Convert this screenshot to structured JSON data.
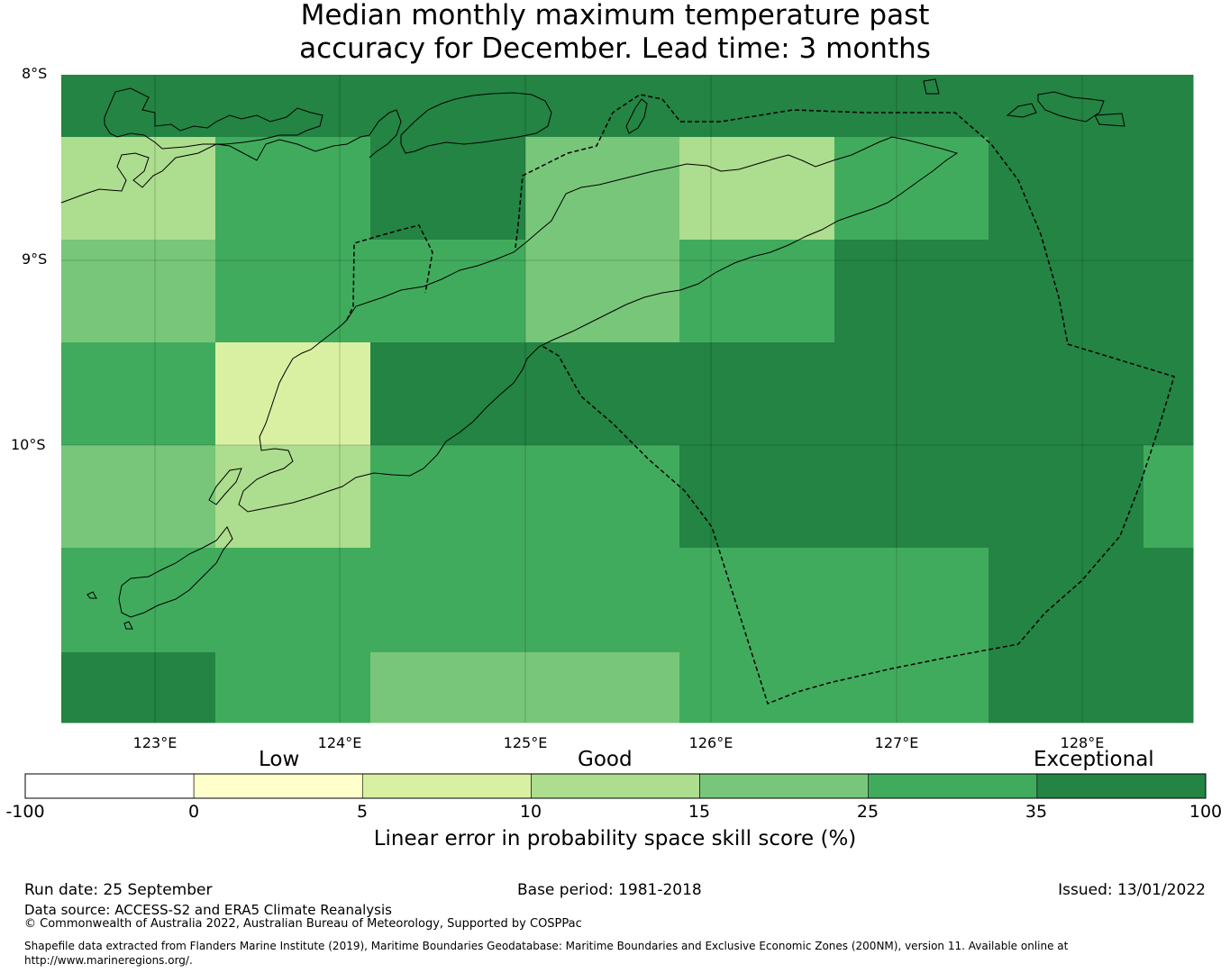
{
  "title": {
    "line1": "Median monthly maximum temperature past",
    "line2": "accuracy for December. Lead time: 3 months"
  },
  "map": {
    "lat_labels": [
      "8°S",
      "9°S",
      "10°S"
    ],
    "lon_labels": [
      "123°E",
      "124°E",
      "125°E",
      "126°E",
      "127°E",
      "128°E"
    ],
    "grid_skill_rows": [
      [
        "exceptional",
        "exceptional",
        "exceptional",
        "exceptional",
        "exceptional",
        "exceptional",
        "exceptional",
        "exceptional"
      ],
      [
        "10-15",
        "25-35",
        "exceptional",
        "15-25",
        "10-15",
        "25-35",
        "exceptional",
        "exceptional"
      ],
      [
        "15-25",
        "25-35",
        "25-35",
        "15-25",
        "25-35",
        "exceptional",
        "exceptional",
        "exceptional"
      ],
      [
        "25-35",
        "5-10",
        "exceptional",
        "exceptional",
        "exceptional",
        "exceptional",
        "exceptional",
        "exceptional"
      ],
      [
        "15-25",
        "10-15",
        "25-35",
        "25-35",
        "exceptional",
        "exceptional",
        "exceptional",
        "25-35"
      ],
      [
        "25-35",
        "25-35",
        "25-35",
        "25-35",
        "25-35",
        "25-35",
        "exceptional",
        "exceptional"
      ],
      [
        "exceptional",
        "25-35",
        "15-25",
        "15-25",
        "25-35",
        "25-35",
        "exceptional",
        "exceptional"
      ]
    ]
  },
  "colorbar": {
    "categories": [
      "Low",
      "Good",
      "Exceptional"
    ],
    "ticks": [
      "-100",
      "0",
      "5",
      "10",
      "15",
      "25",
      "35",
      "100"
    ],
    "colors": [
      "#ffffff",
      "#ffffcc",
      "#d9f0a3",
      "#addd8e",
      "#78c679",
      "#41ab5d",
      "#238443"
    ],
    "label": "Linear error in probability space skill score (%)"
  },
  "footer": {
    "run_date": "Run date: 25 September",
    "base_period": "Base period: 1981-2018",
    "issued": "Issued: 13/01/2022",
    "data_source": "Data source: ACCESS-S2 and ERA5 Climate Reanalysis",
    "copyright": "© Commonwealth of Australia 2022, Australian Bureau of Meteorology, Supported by COSPPac",
    "shapefile_line1": "Shapefile data extracted from Flanders Marine Institute (2019), Maritime Boundaries Geodatabase: Maritime Boundaries and Exclusive Economic Zones (200NM), version 11. Available online at",
    "shapefile_line2": "http://www.marineregions.org/."
  }
}
